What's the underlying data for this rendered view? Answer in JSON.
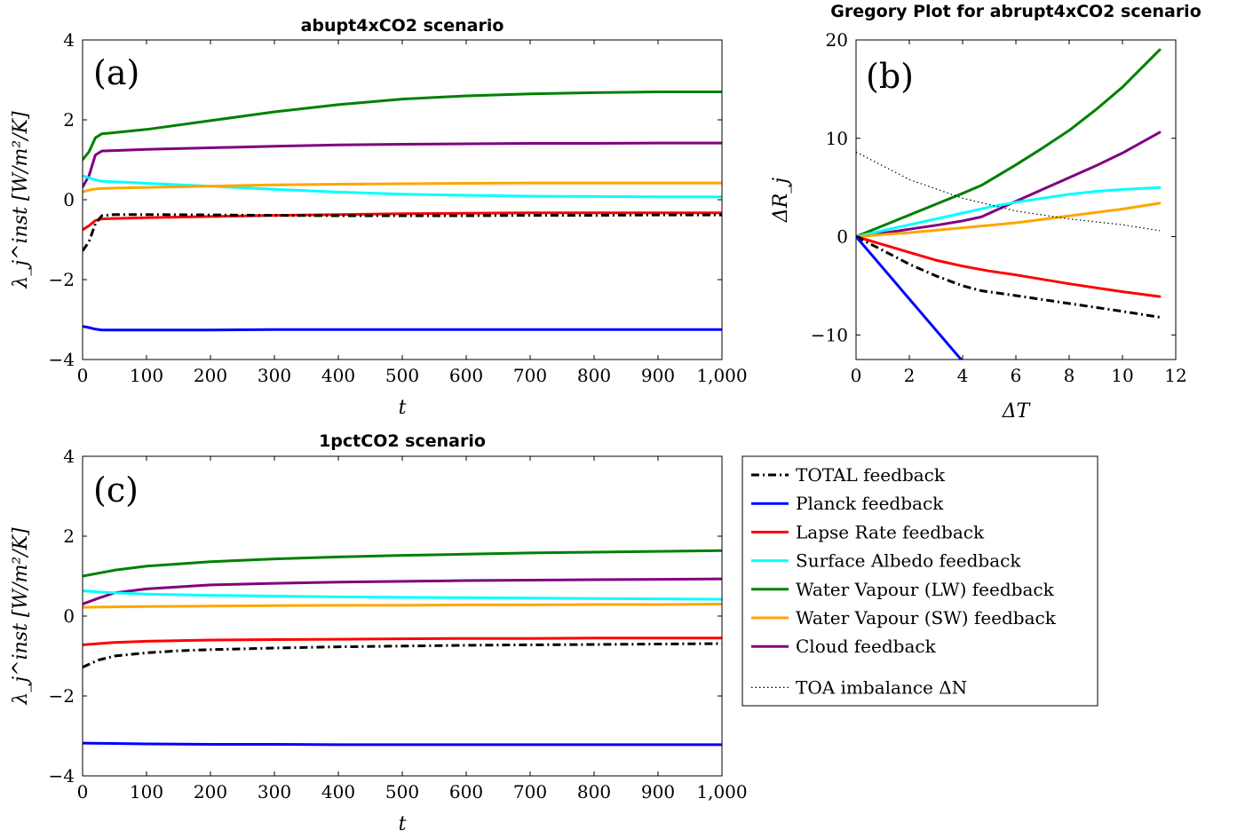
{
  "colors": {
    "total": "#000000",
    "planck": "#0000ff",
    "lapse_rate": "#ff0000",
    "albedo": "#00ffff",
    "wv_lw": "#008000",
    "wv_sw": "#ffa500",
    "cloud": "#800080",
    "toa": "#000000"
  },
  "legend": {
    "items": [
      {
        "key": "total",
        "label": "TOTAL feedback",
        "style": "dashdot"
      },
      {
        "key": "planck",
        "label": "Planck feedback",
        "style": "solid"
      },
      {
        "key": "lapse_rate",
        "label": "Lapse Rate feedback",
        "style": "solid"
      },
      {
        "key": "albedo",
        "label": "Surface Albedo feedback",
        "style": "solid"
      },
      {
        "key": "wv_lw",
        "label": "Water Vapour (LW) feedback",
        "style": "solid"
      },
      {
        "key": "wv_sw",
        "label": "Water Vapour (SW) feedback",
        "style": "solid"
      },
      {
        "key": "cloud",
        "label": "Cloud feedback",
        "style": "solid"
      },
      {
        "key": "toa",
        "label": "TOA imbalance ΔN",
        "style": "dotted"
      }
    ]
  },
  "chart_data": [
    {
      "id": "a",
      "type": "line",
      "title": "abupt4xCO2 scenario",
      "panel_tag": "(a)",
      "xlabel": "t",
      "ylabel": "λ_j^inst [W/m²/K]",
      "xlim": [
        0,
        1000
      ],
      "ylim": [
        -4,
        4
      ],
      "xticks": [
        0,
        100,
        200,
        300,
        400,
        500,
        600,
        700,
        800,
        900,
        1000
      ],
      "xtick_labels": [
        "0",
        "100",
        "200",
        "300",
        "400",
        "500",
        "600",
        "700",
        "800",
        "900",
        "1,000"
      ],
      "yticks": [
        -4,
        -2,
        0,
        2,
        4
      ],
      "ytick_labels": [
        "−4",
        "−2",
        "0",
        "2",
        "4"
      ],
      "grid": false,
      "series": [
        {
          "key": "wv_lw",
          "x": [
            0,
            10,
            20,
            30,
            50,
            100,
            200,
            300,
            400,
            500,
            600,
            700,
            800,
            900,
            1000
          ],
          "y": [
            1.0,
            1.2,
            1.55,
            1.65,
            1.68,
            1.76,
            1.98,
            2.2,
            2.38,
            2.52,
            2.6,
            2.65,
            2.68,
            2.7,
            2.7
          ]
        },
        {
          "key": "cloud",
          "x": [
            0,
            10,
            20,
            30,
            50,
            100,
            200,
            300,
            400,
            500,
            600,
            700,
            800,
            900,
            1000
          ],
          "y": [
            0.32,
            0.6,
            1.12,
            1.22,
            1.23,
            1.26,
            1.3,
            1.34,
            1.37,
            1.39,
            1.4,
            1.41,
            1.41,
            1.42,
            1.42
          ]
        },
        {
          "key": "albedo",
          "x": [
            0,
            10,
            20,
            30,
            50,
            100,
            200,
            300,
            400,
            500,
            600,
            700,
            800,
            900,
            1000
          ],
          "y": [
            0.6,
            0.55,
            0.5,
            0.46,
            0.45,
            0.41,
            0.34,
            0.26,
            0.19,
            0.14,
            0.11,
            0.09,
            0.08,
            0.07,
            0.07
          ]
        },
        {
          "key": "wv_sw",
          "x": [
            0,
            10,
            20,
            30,
            50,
            100,
            200,
            300,
            400,
            500,
            600,
            700,
            800,
            900,
            1000
          ],
          "y": [
            0.2,
            0.24,
            0.27,
            0.28,
            0.29,
            0.31,
            0.34,
            0.37,
            0.39,
            0.4,
            0.41,
            0.42,
            0.42,
            0.42,
            0.42
          ]
        },
        {
          "key": "lapse_rate",
          "x": [
            0,
            10,
            20,
            30,
            50,
            100,
            200,
            300,
            400,
            500,
            600,
            700,
            800,
            900,
            1000
          ],
          "y": [
            -0.75,
            -0.65,
            -0.52,
            -0.48,
            -0.47,
            -0.45,
            -0.42,
            -0.39,
            -0.37,
            -0.35,
            -0.34,
            -0.33,
            -0.33,
            -0.33,
            -0.33
          ]
        },
        {
          "key": "total",
          "x": [
            0,
            10,
            20,
            30,
            50,
            100,
            200,
            300,
            400,
            500,
            600,
            700,
            800,
            900,
            1000
          ],
          "y": [
            -1.28,
            -1.05,
            -0.6,
            -0.4,
            -0.37,
            -0.37,
            -0.38,
            -0.39,
            -0.4,
            -0.4,
            -0.4,
            -0.39,
            -0.39,
            -0.38,
            -0.38
          ]
        },
        {
          "key": "planck",
          "x": [
            0,
            10,
            20,
            30,
            50,
            100,
            200,
            300,
            400,
            500,
            600,
            700,
            800,
            900,
            1000
          ],
          "y": [
            -3.17,
            -3.2,
            -3.24,
            -3.26,
            -3.26,
            -3.26,
            -3.26,
            -3.25,
            -3.25,
            -3.25,
            -3.25,
            -3.25,
            -3.25,
            -3.25,
            -3.25
          ]
        }
      ]
    },
    {
      "id": "b",
      "type": "line",
      "title": "Gregory Plot for abrupt4xCO2 scenario",
      "panel_tag": "(b)",
      "xlabel": "ΔT",
      "ylabel": "ΔR_j",
      "xlim": [
        0,
        12
      ],
      "ylim": [
        -12.5,
        20
      ],
      "xticks": [
        0,
        2,
        4,
        6,
        8,
        10,
        12
      ],
      "xtick_labels": [
        "0",
        "2",
        "4",
        "6",
        "8",
        "10",
        "12"
      ],
      "yticks": [
        -10,
        0,
        10,
        20
      ],
      "ytick_labels": [
        "−10",
        "0",
        "10",
        "20"
      ],
      "grid": false,
      "series": [
        {
          "key": "wv_lw",
          "x": [
            0,
            1,
            2,
            3,
            4,
            4.7,
            6,
            7,
            8,
            9,
            10,
            11.4
          ],
          "y": [
            0,
            1.1,
            2.2,
            3.3,
            4.4,
            5.2,
            7.3,
            9.0,
            10.8,
            12.9,
            15.2,
            19.0
          ]
        },
        {
          "key": "cloud",
          "x": [
            0,
            1,
            2,
            3,
            4,
            4.7,
            6,
            7,
            8,
            9,
            10,
            11.4
          ],
          "y": [
            0,
            0.35,
            0.75,
            1.15,
            1.6,
            2.0,
            3.6,
            4.8,
            6.0,
            7.2,
            8.5,
            10.6
          ]
        },
        {
          "key": "albedo",
          "x": [
            0,
            1,
            2,
            3,
            4,
            5,
            6,
            7,
            8,
            9,
            10,
            11.4
          ],
          "y": [
            0,
            0.6,
            1.2,
            1.8,
            2.4,
            3.0,
            3.5,
            3.9,
            4.3,
            4.6,
            4.8,
            5.0
          ]
        },
        {
          "key": "wv_sw",
          "x": [
            0,
            2,
            4,
            6,
            8,
            10,
            11.4
          ],
          "y": [
            0,
            0.4,
            0.9,
            1.4,
            2.1,
            2.8,
            3.4
          ]
        },
        {
          "key": "lapse_rate",
          "x": [
            0,
            1,
            2,
            3,
            4,
            5,
            6,
            8,
            10,
            11.4
          ],
          "y": [
            0,
            -0.8,
            -1.6,
            -2.4,
            -3.0,
            -3.5,
            -3.9,
            -4.8,
            -5.6,
            -6.1
          ]
        },
        {
          "key": "total",
          "x": [
            0,
            1,
            2,
            3,
            4,
            4.7,
            6,
            8,
            10,
            11.4
          ],
          "y": [
            0,
            -1.4,
            -2.8,
            -4.0,
            -5.0,
            -5.5,
            -6.0,
            -6.8,
            -7.6,
            -8.2
          ]
        },
        {
          "key": "planck",
          "x": [
            0,
            4.1
          ],
          "y": [
            0,
            -13.0
          ]
        },
        {
          "key": "toa",
          "x": [
            0,
            2,
            4,
            6,
            8,
            10,
            11.4
          ],
          "y": [
            8.6,
            5.8,
            3.9,
            2.6,
            1.8,
            1.2,
            0.6
          ]
        }
      ]
    },
    {
      "id": "c",
      "type": "line",
      "title": "1pctCO2 scenario",
      "panel_tag": "(c)",
      "xlabel": "t",
      "ylabel": "λ_j^inst [W/m²/K]",
      "xlim": [
        0,
        1000
      ],
      "ylim": [
        -4,
        4
      ],
      "xticks": [
        0,
        100,
        200,
        300,
        400,
        500,
        600,
        700,
        800,
        900,
        1000
      ],
      "xtick_labels": [
        "0",
        "100",
        "200",
        "300",
        "400",
        "500",
        "600",
        "700",
        "800",
        "900",
        "1,000"
      ],
      "yticks": [
        -4,
        -2,
        0,
        2,
        4
      ],
      "ytick_labels": [
        "−4",
        "−2",
        "0",
        "2",
        "4"
      ],
      "grid": false,
      "series": [
        {
          "key": "wv_lw",
          "x": [
            0,
            50,
            100,
            200,
            300,
            400,
            500,
            600,
            700,
            800,
            900,
            1000
          ],
          "y": [
            1.0,
            1.15,
            1.25,
            1.36,
            1.43,
            1.48,
            1.52,
            1.55,
            1.58,
            1.6,
            1.62,
            1.64
          ]
        },
        {
          "key": "cloud",
          "x": [
            0,
            25,
            50,
            100,
            200,
            300,
            400,
            500,
            600,
            700,
            800,
            900,
            1000
          ],
          "y": [
            0.3,
            0.45,
            0.58,
            0.68,
            0.78,
            0.82,
            0.85,
            0.87,
            0.89,
            0.9,
            0.91,
            0.92,
            0.93
          ]
        },
        {
          "key": "albedo",
          "x": [
            0,
            50,
            100,
            200,
            300,
            400,
            500,
            600,
            700,
            800,
            900,
            1000
          ],
          "y": [
            0.63,
            0.58,
            0.55,
            0.52,
            0.5,
            0.48,
            0.47,
            0.46,
            0.45,
            0.44,
            0.43,
            0.42
          ]
        },
        {
          "key": "wv_sw",
          "x": [
            0,
            100,
            200,
            300,
            400,
            500,
            600,
            700,
            800,
            900,
            1000
          ],
          "y": [
            0.22,
            0.24,
            0.25,
            0.26,
            0.27,
            0.27,
            0.28,
            0.28,
            0.29,
            0.29,
            0.3
          ]
        },
        {
          "key": "lapse_rate",
          "x": [
            0,
            50,
            100,
            200,
            300,
            400,
            500,
            600,
            700,
            800,
            900,
            1000
          ],
          "y": [
            -0.72,
            -0.66,
            -0.63,
            -0.6,
            -0.59,
            -0.58,
            -0.57,
            -0.56,
            -0.56,
            -0.55,
            -0.55,
            -0.55
          ]
        },
        {
          "key": "total",
          "x": [
            0,
            25,
            50,
            100,
            150,
            200,
            300,
            400,
            500,
            600,
            700,
            800,
            900,
            1000
          ],
          "y": [
            -1.28,
            -1.1,
            -1.0,
            -0.92,
            -0.87,
            -0.84,
            -0.8,
            -0.77,
            -0.75,
            -0.73,
            -0.72,
            -0.71,
            -0.7,
            -0.69
          ]
        },
        {
          "key": "planck",
          "x": [
            0,
            100,
            200,
            300,
            400,
            500,
            600,
            700,
            800,
            900,
            1000
          ],
          "y": [
            -3.18,
            -3.2,
            -3.21,
            -3.21,
            -3.22,
            -3.22,
            -3.22,
            -3.22,
            -3.22,
            -3.22,
            -3.22
          ]
        }
      ]
    }
  ]
}
